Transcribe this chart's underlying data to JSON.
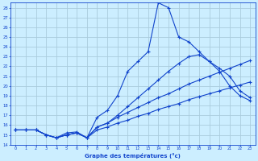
{
  "xlabel": "Graphe des températures (°c)",
  "bg_color": "#cceeff",
  "grid_color": "#aaccdd",
  "line_color": "#1144cc",
  "marker": "+",
  "marker_size": 3.5,
  "xlim": [
    -0.5,
    23.5
  ],
  "ylim": [
    14,
    28.5
  ],
  "xticks": [
    0,
    1,
    2,
    3,
    4,
    5,
    6,
    7,
    8,
    9,
    10,
    11,
    12,
    13,
    14,
    15,
    16,
    17,
    18,
    19,
    20,
    21,
    22,
    23
  ],
  "yticks": [
    14,
    15,
    16,
    17,
    18,
    19,
    20,
    21,
    22,
    23,
    24,
    25,
    26,
    27,
    28
  ],
  "curve1_x": [
    0,
    1,
    2,
    3,
    4,
    5,
    6,
    7,
    8,
    9,
    10,
    11,
    12,
    13,
    14,
    15,
    16,
    17,
    18,
    19,
    20,
    21,
    22,
    23
  ],
  "curve1_y": [
    15.5,
    15.5,
    15.5,
    15.0,
    14.7,
    15.2,
    15.3,
    14.7,
    16.8,
    17.5,
    19.0,
    21.5,
    22.5,
    23.5,
    28.5,
    28.0,
    25.0,
    24.5,
    23.5,
    22.5,
    21.5,
    20.0,
    19.0,
    18.5
  ],
  "curve2_x": [
    0,
    1,
    2,
    3,
    4,
    5,
    6,
    7,
    8,
    9,
    10,
    11,
    12,
    13,
    14,
    15,
    16,
    17,
    18,
    19,
    20,
    21,
    22,
    23
  ],
  "curve2_y": [
    15.5,
    15.5,
    15.5,
    15.0,
    14.7,
    15.0,
    15.2,
    14.7,
    15.8,
    16.2,
    16.8,
    17.3,
    17.8,
    18.3,
    18.8,
    19.2,
    19.7,
    20.2,
    20.6,
    21.0,
    21.4,
    21.8,
    22.2,
    22.6
  ],
  "curve3_x": [
    0,
    1,
    2,
    3,
    4,
    5,
    6,
    7,
    8,
    9,
    10,
    11,
    12,
    13,
    14,
    15,
    16,
    17,
    18,
    19,
    20,
    21,
    22,
    23
  ],
  "curve3_y": [
    15.5,
    15.5,
    15.5,
    15.0,
    14.7,
    15.0,
    15.2,
    14.7,
    15.5,
    15.8,
    16.2,
    16.5,
    16.9,
    17.2,
    17.6,
    17.9,
    18.2,
    18.6,
    18.9,
    19.2,
    19.5,
    19.8,
    20.1,
    20.4
  ],
  "curve4_x": [
    0,
    1,
    2,
    3,
    4,
    5,
    6,
    7,
    8,
    9,
    10,
    11,
    12,
    13,
    14,
    15,
    16,
    17,
    18,
    19,
    20,
    21,
    22,
    23
  ],
  "curve4_y": [
    15.5,
    15.5,
    15.5,
    15.0,
    14.7,
    15.0,
    15.2,
    14.7,
    15.8,
    16.2,
    17.0,
    17.9,
    18.8,
    19.7,
    20.6,
    21.5,
    22.3,
    23.0,
    23.2,
    22.5,
    21.8,
    21.0,
    19.5,
    18.8
  ]
}
